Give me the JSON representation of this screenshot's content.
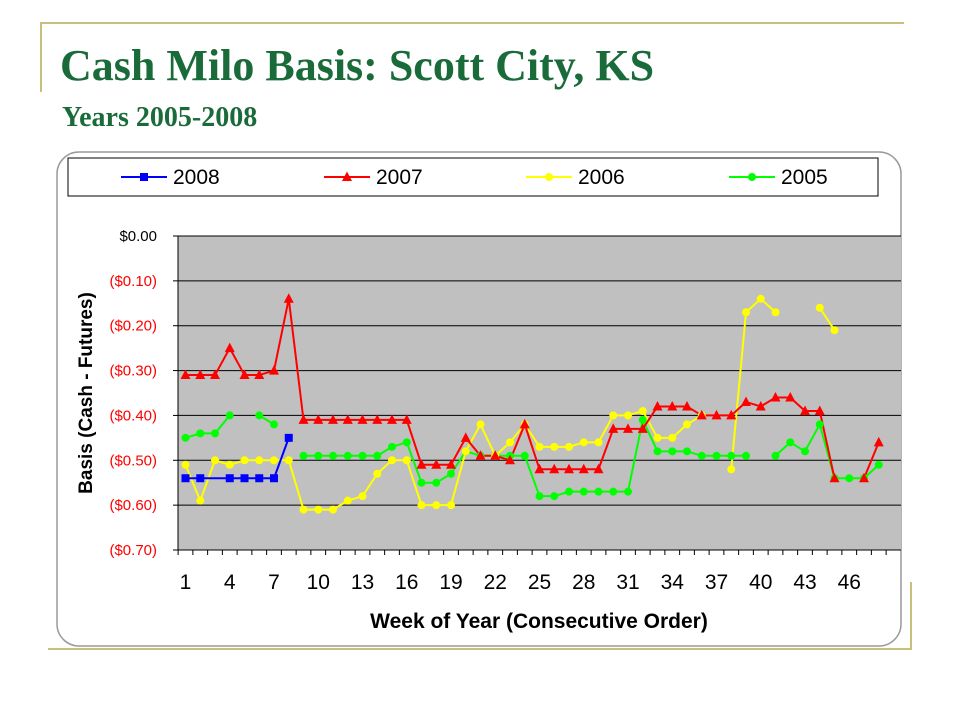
{
  "slide": {
    "title": "Cash Milo Basis: Scott City, KS",
    "subtitle": "Years 2005-2008"
  },
  "chart_data": {
    "type": "line",
    "title": "",
    "xlabel": "Week of Year (Consecutive Order)",
    "ylabel": "Basis (Cash - Futures)",
    "ylim": [
      -0.7,
      0.0
    ],
    "xlim": [
      1,
      48
    ],
    "grid": "horizontal",
    "legend_position": "top",
    "plot_background": "#c0c0c0",
    "x_ticks": [
      "1",
      "4",
      "7",
      "10",
      "13",
      "16",
      "19",
      "22",
      "25",
      "28",
      "31",
      "34",
      "37",
      "40",
      "43",
      "46"
    ],
    "y_ticks": [
      {
        "value": 0.0,
        "label": "$0.00",
        "color": "#000000"
      },
      {
        "value": -0.1,
        "label": "($0.10)",
        "color": "#ff0000"
      },
      {
        "value": -0.2,
        "label": "($0.20)",
        "color": "#ff0000"
      },
      {
        "value": -0.3,
        "label": "($0.30)",
        "color": "#ff0000"
      },
      {
        "value": -0.4,
        "label": "($0.40)",
        "color": "#ff0000"
      },
      {
        "value": -0.5,
        "label": "($0.50)",
        "color": "#ff0000"
      },
      {
        "value": -0.6,
        "label": "($0.60)",
        "color": "#ff0000"
      },
      {
        "value": -0.7,
        "label": "($0.70)",
        "color": "#ff0000"
      }
    ],
    "series": [
      {
        "name": "2008",
        "color": "#0000ff",
        "marker": "square",
        "points": [
          [
            1,
            -0.54
          ],
          [
            2,
            -0.54
          ],
          [
            4,
            -0.54
          ],
          [
            5,
            -0.54
          ],
          [
            6,
            -0.54
          ],
          [
            7,
            -0.54
          ],
          [
            8,
            -0.45
          ]
        ]
      },
      {
        "name": "2007",
        "color": "#ff0000",
        "marker": "triangle",
        "points": [
          [
            1,
            -0.31
          ],
          [
            2,
            -0.31
          ],
          [
            3,
            -0.31
          ],
          [
            4,
            -0.25
          ],
          [
            5,
            -0.31
          ],
          [
            6,
            -0.31
          ],
          [
            7,
            -0.3
          ],
          [
            8,
            -0.14
          ],
          [
            9,
            -0.41
          ],
          [
            10,
            -0.41
          ],
          [
            11,
            -0.41
          ],
          [
            12,
            -0.41
          ],
          [
            13,
            -0.41
          ],
          [
            14,
            -0.41
          ],
          [
            15,
            -0.41
          ],
          [
            16,
            -0.41
          ],
          [
            17,
            -0.51
          ],
          [
            18,
            -0.51
          ],
          [
            19,
            -0.51
          ],
          [
            20,
            -0.45
          ],
          [
            21,
            -0.49
          ],
          [
            22,
            -0.49
          ],
          [
            23,
            -0.5
          ],
          [
            24,
            -0.42
          ],
          [
            25,
            -0.52
          ],
          [
            26,
            -0.52
          ],
          [
            27,
            -0.52
          ],
          [
            28,
            -0.52
          ],
          [
            29,
            -0.52
          ],
          [
            30,
            -0.43
          ],
          [
            31,
            -0.43
          ],
          [
            32,
            -0.43
          ],
          [
            33,
            -0.38
          ],
          [
            34,
            -0.38
          ],
          [
            35,
            -0.38
          ],
          [
            36,
            -0.4
          ],
          [
            37,
            -0.4
          ],
          [
            38,
            -0.4
          ],
          [
            39,
            -0.37
          ],
          [
            40,
            -0.38
          ],
          [
            41,
            -0.36
          ],
          [
            42,
            -0.36
          ],
          [
            43,
            -0.39
          ],
          [
            44,
            -0.39
          ],
          [
            45,
            -0.54
          ],
          null,
          [
            47,
            -0.54
          ],
          [
            48,
            -0.46
          ]
        ]
      },
      {
        "name": "2006",
        "color": "#ffff00",
        "marker": "circle",
        "points": [
          [
            1,
            -0.51
          ],
          [
            2,
            -0.59
          ],
          [
            3,
            -0.5
          ],
          [
            4,
            -0.51
          ],
          [
            5,
            -0.5
          ],
          [
            6,
            -0.5
          ],
          [
            7,
            -0.5
          ],
          [
            8,
            -0.5
          ],
          [
            9,
            -0.61
          ],
          [
            10,
            -0.61
          ],
          [
            11,
            -0.61
          ],
          [
            12,
            -0.59
          ],
          [
            13,
            -0.58
          ],
          [
            14,
            -0.53
          ],
          [
            15,
            -0.5
          ],
          [
            16,
            -0.5
          ],
          [
            17,
            -0.6
          ],
          [
            18,
            -0.6
          ],
          [
            19,
            -0.6
          ],
          [
            20,
            -0.48
          ],
          [
            21,
            -0.42
          ],
          [
            22,
            -0.49
          ],
          [
            23,
            -0.46
          ],
          [
            24,
            -0.42
          ],
          [
            25,
            -0.47
          ],
          [
            26,
            -0.47
          ],
          [
            27,
            -0.47
          ],
          [
            28,
            -0.46
          ],
          [
            29,
            -0.46
          ],
          [
            30,
            -0.4
          ],
          [
            31,
            -0.4
          ],
          [
            32,
            -0.39
          ],
          [
            33,
            -0.45
          ],
          [
            34,
            -0.45
          ],
          [
            35,
            -0.42
          ],
          [
            36,
            -0.4
          ],
          null,
          [
            38,
            -0.52
          ],
          [
            39,
            -0.17
          ],
          [
            40,
            -0.14
          ],
          [
            41,
            -0.17
          ],
          null,
          null,
          [
            44,
            -0.16
          ],
          [
            45,
            -0.21
          ]
        ]
      },
      {
        "name": "2005",
        "color": "#00ff00",
        "marker": "circle",
        "points": [
          [
            1,
            -0.45
          ],
          [
            2,
            -0.44
          ],
          [
            3,
            -0.44
          ],
          [
            4,
            -0.4
          ],
          null,
          [
            6,
            -0.4
          ],
          [
            7,
            -0.42
          ],
          null,
          [
            9,
            -0.49
          ],
          [
            10,
            -0.49
          ],
          [
            11,
            -0.49
          ],
          [
            12,
            -0.49
          ],
          [
            13,
            -0.49
          ],
          [
            14,
            -0.49
          ],
          [
            15,
            -0.47
          ],
          [
            16,
            -0.46
          ],
          [
            17,
            -0.55
          ],
          [
            18,
            -0.55
          ],
          [
            19,
            -0.53
          ],
          [
            20,
            -0.48
          ],
          [
            21,
            -0.49
          ],
          [
            22,
            -0.49
          ],
          [
            23,
            -0.49
          ],
          [
            24,
            -0.49
          ],
          [
            25,
            -0.58
          ],
          [
            26,
            -0.58
          ],
          [
            27,
            -0.57
          ],
          [
            28,
            -0.57
          ],
          [
            29,
            -0.57
          ],
          [
            30,
            -0.57
          ],
          [
            31,
            -0.57
          ],
          [
            32,
            -0.41
          ],
          [
            33,
            -0.48
          ],
          [
            34,
            -0.48
          ],
          [
            35,
            -0.48
          ],
          [
            36,
            -0.49
          ],
          [
            37,
            -0.49
          ],
          [
            38,
            -0.49
          ],
          [
            39,
            -0.49
          ],
          null,
          [
            41,
            -0.49
          ],
          [
            42,
            -0.46
          ],
          [
            43,
            -0.48
          ],
          [
            44,
            -0.42
          ],
          [
            45,
            -0.54
          ],
          [
            46,
            -0.54
          ],
          [
            47,
            -0.54
          ],
          [
            48,
            -0.51
          ]
        ]
      }
    ]
  }
}
